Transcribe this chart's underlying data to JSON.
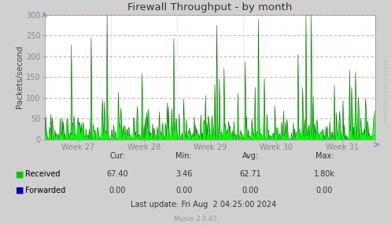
{
  "title": "Firewall Throughput - by month",
  "ylabel": "Packets/second",
  "ylim": [
    0,
    300
  ],
  "yticks": [
    0,
    50,
    100,
    150,
    200,
    250,
    300
  ],
  "week_labels": [
    "Week 27",
    "Week 28",
    "Week 29",
    "Week 30",
    "Week 31"
  ],
  "bg_color": "#d0d0d0",
  "plot_bg_color": "#ffffff",
  "grid_color_h": "#ff8888",
  "grid_color_v": "#bbbbbb",
  "bar_color": "#00ff00",
  "bar_edge_color": "#006600",
  "title_color": "#333333",
  "axis_color": "#444444",
  "tick_color": "#888888",
  "legend_received_color": "#00cc00",
  "legend_forwarded_color": "#0000cc",
  "watermark": "RRDTOOL / TOBI OETIKER",
  "footer_text": "Munin 2.0.67",
  "stats_cur": "67.40",
  "stats_min": "3.46",
  "stats_avg": "62.71",
  "stats_max": "1.80k",
  "stats_cur2": "0.00",
  "stats_min2": "0.00",
  "stats_avg2": "0.00",
  "stats_max2": "0.00",
  "last_update": "Last update: Fri Aug  2 04:25:00 2024",
  "num_points": 500,
  "seed": 42
}
